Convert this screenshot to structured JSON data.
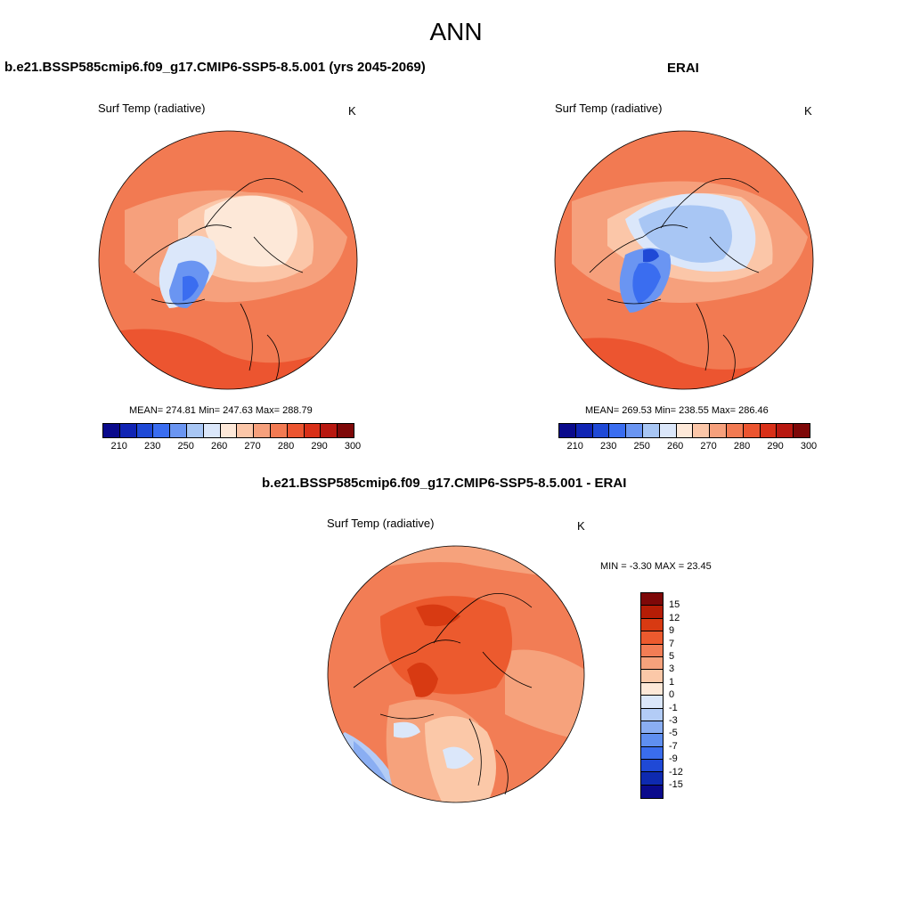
{
  "page_title": "ANN",
  "panel_left": {
    "title": "b.e21.BSSP585cmip6.f09_g17.CMIP6-SSP5-8.5.001 (yrs 2045-2069)",
    "variable": "Surf Temp (radiative)",
    "units": "K",
    "stats": "MEAN= 274.81  Min= 247.63  Max= 288.79"
  },
  "panel_right": {
    "title": "ERAI",
    "variable": "Surf Temp (radiative)",
    "units": "K",
    "stats": "MEAN= 269.53  Min= 238.55  Max= 286.46"
  },
  "panel_diff": {
    "title": "b.e21.BSSP585cmip6.f09_g17.CMIP6-SSP5-8.5.001 - ERAI",
    "variable": "Surf Temp (radiative)",
    "units": "K",
    "stats": "MIN =  -3.30 MAX =  23.45"
  },
  "abs_colorbar": {
    "colors": [
      "#0a0a8c",
      "#1024b4",
      "#1f49d6",
      "#3a6df0",
      "#6a95f2",
      "#a8c6f4",
      "#dbe7fa",
      "#fde8d8",
      "#fbc6a8",
      "#f6a07c",
      "#f27a52",
      "#ec5530",
      "#d93018",
      "#b81810",
      "#7e0808"
    ],
    "tick_labels": [
      "210",
      "230",
      "250",
      "260",
      "270",
      "280",
      "290",
      "300"
    ]
  },
  "diff_colorbar": {
    "colors": [
      "#7e0808",
      "#b51d06",
      "#d83a12",
      "#ec5a2e",
      "#f27d55",
      "#f6a27c",
      "#fbc8a8",
      "#fde8d8",
      "#dbe7fa",
      "#b3ccf6",
      "#8aaef2",
      "#5f8ff0",
      "#3a6ded",
      "#1f49d6",
      "#0e2ab0",
      "#0a0a8c"
    ],
    "tick_labels": [
      "15",
      "12",
      "9",
      "7",
      "5",
      "3",
      "1",
      "0",
      "-1",
      "-3",
      "-5",
      "-7",
      "-9",
      "-12",
      "-15"
    ]
  },
  "map_colors": {
    "warm_deep": "#d93018",
    "warm_mid": "#f27a52",
    "warm_light": "#f6a07c",
    "warm_pale": "#fde8d8",
    "cool_pale": "#dbe7fa",
    "cool_light": "#a8c6f4",
    "cool_mid": "#3a6df0",
    "cool_deep": "#1024b4"
  }
}
